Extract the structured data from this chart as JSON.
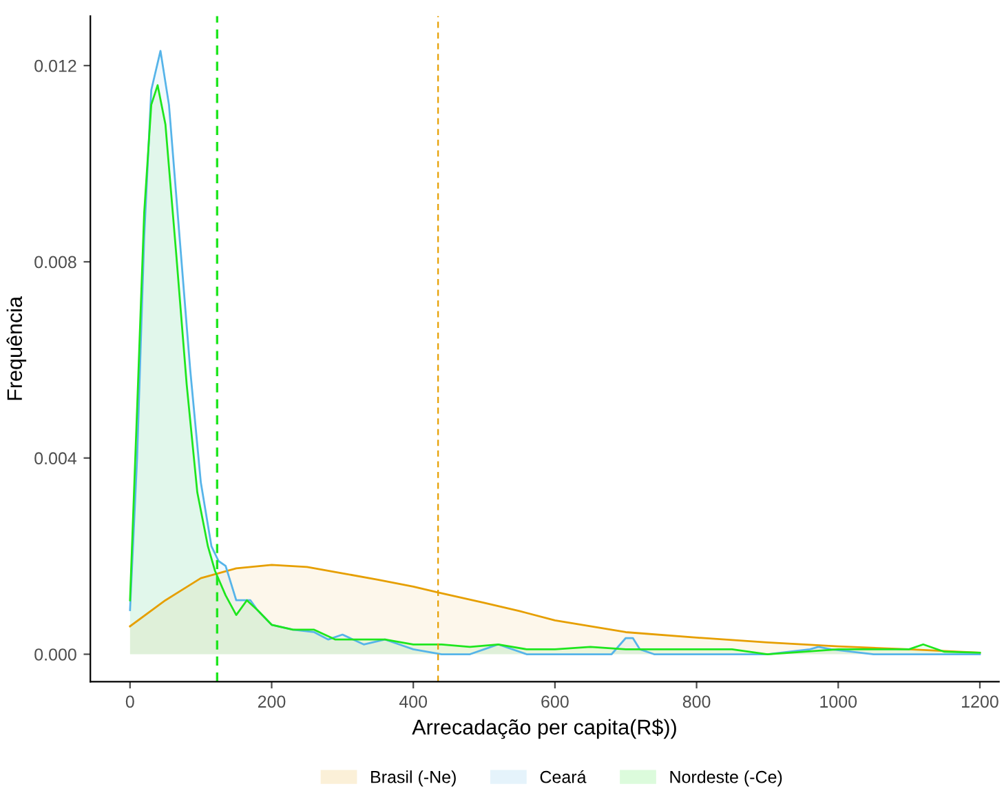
{
  "chart_data": {
    "type": "area",
    "xlabel": "Arrecadação per capita(R$))",
    "ylabel": "Frequência",
    "xlim": [
      -56,
      1227
    ],
    "ylim": [
      -0.00056,
      0.01301
    ],
    "xticks": [
      0,
      200,
      400,
      600,
      800,
      1000,
      1200
    ],
    "yticks": [
      {
        "value": 0,
        "label": "0.000"
      },
      {
        "value": 0.004,
        "label": "0.004"
      },
      {
        "value": 0.008,
        "label": "0.008"
      },
      {
        "value": 0.012,
        "label": "0.012"
      }
    ],
    "grid": false,
    "legend": "bottom",
    "line_style": "solid",
    "series": [
      {
        "name": "Brasil (-Ne)",
        "color": "#e69f00",
        "x": [
          0,
          50,
          100,
          150,
          200,
          250,
          300,
          350,
          400,
          435,
          500,
          550,
          600,
          700,
          800,
          900,
          1000,
          1100,
          1200
        ],
        "values": [
          0.00057,
          0.0011,
          0.00155,
          0.00175,
          0.00182,
          0.00178,
          0.00165,
          0.00152,
          0.00138,
          0.00126,
          0.00105,
          0.00088,
          0.00069,
          0.00045,
          0.00034,
          0.00024,
          0.00016,
          0.0001,
          3e-05
        ]
      },
      {
        "name": "Ceará",
        "color": "#56b4e9",
        "x": [
          0,
          10,
          20,
          30,
          43,
          55,
          70,
          85,
          100,
          115,
          125,
          135,
          150,
          160,
          170,
          180,
          200,
          230,
          260,
          280,
          300,
          330,
          360,
          380,
          400,
          440,
          480,
          500,
          520,
          560,
          600,
          680,
          700,
          710,
          720,
          740,
          800,
          900,
          960,
          972,
          990,
          1050,
          1100,
          1150,
          1200
        ],
        "values": [
          0.0009,
          0.004,
          0.0085,
          0.0115,
          0.0123,
          0.0112,
          0.0085,
          0.0058,
          0.0035,
          0.0022,
          0.0019,
          0.0018,
          0.0011,
          0.0011,
          0.0011,
          0.0009,
          0.0006,
          0.0005,
          0.00045,
          0.0003,
          0.0004,
          0.0002,
          0.0003,
          0.0002,
          0.0001,
          0.0,
          0.0,
          0.0001,
          0.0002,
          0.0,
          0.0,
          0.0,
          0.00033,
          0.00033,
          0.0001,
          0.0,
          0.0,
          0.0,
          0.0001,
          0.00015,
          0.0001,
          0.0,
          0.0,
          0.0,
          0.0
        ]
      },
      {
        "name": "Nordeste (-Ce)",
        "color": "#1ee61e",
        "x": [
          0,
          10,
          20,
          30,
          39,
          50,
          65,
          80,
          95,
          110,
          120,
          135,
          150,
          165,
          180,
          200,
          230,
          260,
          290,
          330,
          360,
          400,
          440,
          480,
          520,
          560,
          600,
          650,
          700,
          760,
          850,
          900,
          1000,
          1100,
          1120,
          1150,
          1200
        ],
        "values": [
          0.0011,
          0.005,
          0.009,
          0.0112,
          0.0116,
          0.0108,
          0.0082,
          0.0055,
          0.0033,
          0.0022,
          0.0017,
          0.0012,
          0.0008,
          0.0011,
          0.0009,
          0.0006,
          0.0005,
          0.0005,
          0.0003,
          0.0003,
          0.0003,
          0.0002,
          0.0002,
          0.00015,
          0.0002,
          0.0001,
          0.0001,
          0.00015,
          0.0001,
          0.0001,
          0.0001,
          0.0,
          0.0001,
          0.0001,
          0.0002,
          5e-05,
          3e-05
        ]
      }
    ],
    "ref_lines": [
      {
        "axis": "x",
        "value": 435,
        "color": "#e69f00",
        "line_style": "dashed"
      },
      {
        "axis": "x",
        "value": 123,
        "color": "#1ee61e",
        "line_style": "dashed"
      }
    ]
  }
}
